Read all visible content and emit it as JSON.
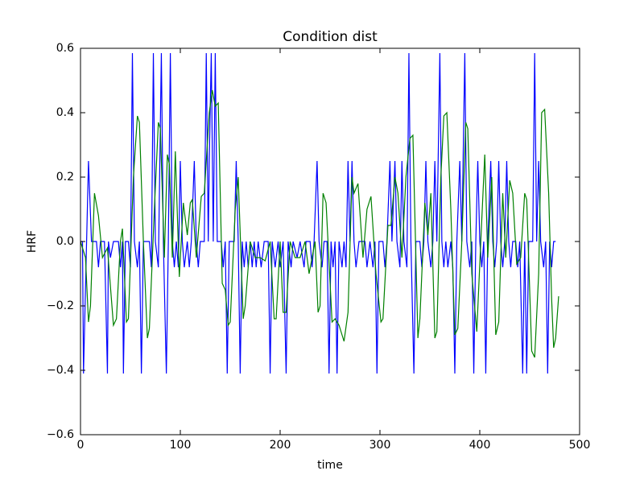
{
  "chart_data": {
    "type": "line",
    "title": "Condition dist",
    "x_label": "time",
    "y_label": "HRF",
    "xlim": [
      0,
      500
    ],
    "xticks": [
      0,
      100,
      200,
      300,
      400,
      500
    ],
    "ylim": [
      -0.6,
      0.6
    ],
    "yticks": [
      {
        "value": -0.6,
        "label": "−0.6"
      },
      {
        "value": -0.4,
        "label": "−0.4"
      },
      {
        "value": -0.2,
        "label": "−0.2"
      },
      {
        "value": 0,
        "label": "0.0"
      },
      0.2,
      0.4,
      0.6
    ],
    "grid": false,
    "series": [
      {
        "color": "#0000ff",
        "x": [
          0,
          2,
          3,
          8,
          11,
          16,
          18,
          20,
          24,
          27,
          28,
          30,
          33,
          38,
          40,
          42,
          43,
          45,
          48,
          50,
          52,
          54,
          57,
          59,
          61,
          63,
          69,
          71,
          73,
          75,
          78,
          81,
          83,
          86,
          88,
          90,
          92,
          94,
          96,
          98,
          100,
          102,
          104,
          107,
          109,
          111,
          114,
          116,
          118,
          120,
          124,
          126,
          128,
          129,
          131,
          133,
          135,
          137,
          141,
          143,
          145,
          147,
          149,
          154,
          156,
          158,
          160,
          162,
          164,
          166,
          168,
          170,
          172,
          174,
          176,
          178,
          181,
          184,
          188,
          190,
          192,
          195,
          198,
          200,
          203,
          206,
          208,
          211,
          213,
          217,
          220,
          224,
          226,
          230,
          232,
          234,
          237,
          239,
          242,
          244,
          247,
          249,
          251,
          253,
          255,
          257,
          259,
          262,
          264,
          266,
          268,
          270,
          272,
          274,
          276,
          279,
          285,
          287,
          290,
          293,
          295,
          297,
          299,
          303,
          305,
          307,
          310,
          312,
          315,
          317,
          320,
          322,
          324,
          327,
          329,
          331,
          334,
          336,
          340,
          342,
          344,
          346,
          348,
          351,
          353,
          355,
          357,
          360,
          362,
          364,
          366,
          368,
          371,
          373,
          375,
          377,
          380,
          382,
          385,
          387,
          390,
          392,
          394,
          396,
          398,
          400,
          402,
          404,
          406,
          408,
          411,
          413,
          415,
          417,
          419,
          421,
          423,
          425,
          427,
          429,
          431,
          433,
          436,
          438,
          440,
          443,
          445,
          447,
          449,
          453,
          455,
          457,
          459,
          461,
          464,
          466,
          468,
          470,
          472,
          474,
          476
        ],
        "values": [
          0,
          0,
          -0.41,
          0.25,
          0,
          0,
          -0.08,
          0,
          0,
          -0.41,
          0,
          -0.05,
          0,
          0,
          -0.08,
          0,
          -0.41,
          0,
          0,
          -0.08,
          0.585,
          0,
          -0.08,
          0,
          -0.41,
          0,
          0,
          -0.08,
          0.585,
          0,
          -0.08,
          0.585,
          0,
          -0.41,
          0,
          0.585,
          0,
          -0.08,
          0,
          -0.08,
          0.25,
          0,
          -0.08,
          0,
          -0.08,
          0,
          0.25,
          0,
          -0.08,
          0,
          0,
          0.585,
          0,
          0.25,
          0.585,
          0,
          0.585,
          0,
          0,
          -0.08,
          0,
          -0.41,
          0,
          0,
          0.25,
          0,
          -0.41,
          0,
          -0.08,
          0,
          -0.08,
          0,
          -0.08,
          0,
          -0.08,
          0,
          -0.08,
          0,
          0,
          -0.41,
          0,
          -0.08,
          0,
          -0.08,
          0,
          -0.41,
          0,
          -0.08,
          0,
          -0.05,
          0,
          -0.08,
          0,
          0,
          -0.08,
          0,
          0.25,
          0,
          -0.08,
          0,
          0,
          -0.41,
          0,
          -0.08,
          0,
          -0.41,
          0,
          -0.08,
          0,
          -0.08,
          0.25,
          0,
          0.25,
          0,
          -0.08,
          0,
          0,
          -0.08,
          0,
          -0.08,
          0,
          -0.41,
          0,
          0,
          -0.08,
          0,
          0.25,
          0,
          0.25,
          0,
          -0.08,
          0.25,
          0,
          -0.08,
          0.585,
          0,
          -0.41,
          0,
          0,
          -0.08,
          0,
          0.25,
          0,
          -0.08,
          0,
          0.25,
          0,
          0.585,
          0,
          -0.08,
          0,
          -0.08,
          0,
          -0.08,
          -0.41,
          0,
          0.25,
          0,
          0.585,
          0,
          -0.08,
          0,
          -0.41,
          0,
          0.25,
          0,
          -0.08,
          0,
          -0.41,
          0,
          0.25,
          0,
          -0.08,
          0,
          0.25,
          0,
          -0.08,
          0,
          0.25,
          0,
          -0.08,
          0,
          0,
          -0.08,
          0,
          -0.41,
          0,
          -0.41,
          0,
          0,
          0.585,
          0,
          0.25,
          0,
          -0.08,
          0,
          -0.41,
          0,
          -0.08,
          0,
          0
        ]
      },
      {
        "color": "#008000",
        "x": [
          0,
          5,
          8,
          10,
          14,
          18,
          22,
          27,
          33,
          36,
          40,
          42,
          46,
          48,
          53,
          57,
          59,
          63,
          67,
          69,
          74,
          78,
          80,
          84,
          87,
          89,
          92,
          95,
          99,
          103,
          107,
          110,
          112,
          116,
          121,
          124,
          129,
          132,
          135,
          138,
          142,
          145,
          148,
          150,
          155,
          158,
          163,
          165,
          170,
          175,
          180,
          185,
          190,
          194,
          196,
          200,
          203,
          206,
          210,
          215,
          220,
          225,
          229,
          235,
          238,
          240,
          243,
          246,
          252,
          255,
          259,
          264,
          268,
          272,
          274,
          278,
          283,
          287,
          291,
          296,
          301,
          303,
          308,
          311,
          315,
          318,
          322,
          326,
          330,
          333,
          338,
          340,
          345,
          348,
          351,
          355,
          357,
          361,
          364,
          367,
          371,
          375,
          378,
          382,
          386,
          388,
          392,
          397,
          401,
          405,
          408,
          412,
          416,
          419,
          423,
          426,
          430,
          433,
          437,
          441,
          445,
          447,
          452,
          455,
          459,
          462,
          465,
          469,
          472,
          474,
          476,
          479
        ],
        "values": [
          0,
          -0.05,
          -0.25,
          -0.2,
          0.15,
          0.08,
          -0.05,
          -0.02,
          -0.26,
          -0.24,
          0,
          0.04,
          -0.25,
          -0.24,
          0.2,
          0.39,
          0.37,
          0,
          -0.3,
          -0.27,
          0.1,
          0.37,
          0.35,
          -0.05,
          0.27,
          0.24,
          -0.05,
          0.28,
          -0.11,
          0.12,
          0.02,
          0.12,
          0.13,
          -0.05,
          0.14,
          0.15,
          0.4,
          0.47,
          0.42,
          0.43,
          -0.13,
          -0.15,
          -0.26,
          -0.25,
          0.1,
          0.2,
          -0.24,
          -0.2,
          0,
          -0.05,
          -0.05,
          -0.06,
          0,
          -0.24,
          -0.24,
          0,
          -0.22,
          -0.22,
          0,
          -0.05,
          -0.05,
          0,
          -0.1,
          0,
          -0.22,
          -0.2,
          0.15,
          0.12,
          -0.25,
          -0.24,
          -0.26,
          -0.31,
          -0.22,
          0.2,
          0.15,
          0.18,
          -0.05,
          0.1,
          0.14,
          -0.1,
          -0.25,
          -0.24,
          0.05,
          0.05,
          0.2,
          0.15,
          -0.05,
          0.2,
          0.32,
          0.33,
          -0.3,
          -0.24,
          0.12,
          0.02,
          0.15,
          -0.3,
          -0.28,
          0.2,
          0.39,
          0.4,
          0.1,
          -0.29,
          -0.27,
          0,
          0.37,
          0.35,
          -0.1,
          -0.28,
          0,
          0.27,
          -0.05,
          0.2,
          -0.29,
          -0.25,
          0.15,
          -0.05,
          0.19,
          0.15,
          -0.07,
          -0.05,
          0.15,
          0.13,
          -0.34,
          -0.36,
          -0.1,
          0.4,
          0.41,
          0.15,
          -0.18,
          -0.33,
          -0.3,
          -0.17
        ]
      }
    ]
  }
}
